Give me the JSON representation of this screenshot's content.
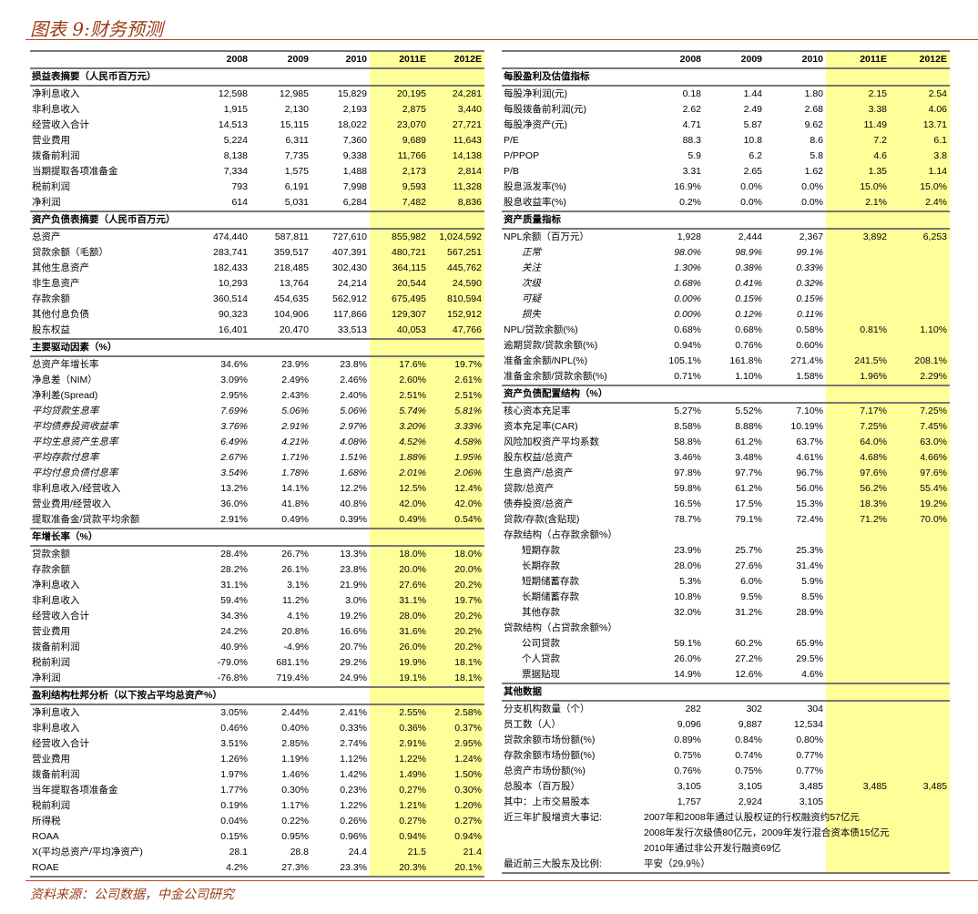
{
  "title": "图表 9:财务预测",
  "source": "资料来源：公司数据，中金公司研究",
  "colors": {
    "highlight": "#ffff99",
    "title": "#9a3b17",
    "rule": "#b5461f"
  },
  "years": [
    "2008",
    "2009",
    "2010",
    "2011E",
    "2012E"
  ],
  "left": [
    {
      "title": "损益表摘要（人民币百万元）",
      "rows": [
        {
          "label": "净利息收入",
          "values": [
            "12,598",
            "12,985",
            "15,829",
            "20,195",
            "24,281"
          ]
        },
        {
          "label": "非利息收入",
          "values": [
            "1,915",
            "2,130",
            "2,193",
            "2,875",
            "3,440"
          ]
        },
        {
          "label": "经营收入合计",
          "values": [
            "14,513",
            "15,115",
            "18,022",
            "23,070",
            "27,721"
          ]
        },
        {
          "label": "营业费用",
          "values": [
            "5,224",
            "6,311",
            "7,360",
            "9,689",
            "11,643"
          ]
        },
        {
          "label": "拨备前利润",
          "values": [
            "8,138",
            "7,735",
            "9,338",
            "11,766",
            "14,138"
          ]
        },
        {
          "label": "当期提取各项准备金",
          "values": [
            "7,334",
            "1,575",
            "1,488",
            "2,173",
            "2,814"
          ]
        },
        {
          "label": "税前利润",
          "values": [
            "793",
            "6,191",
            "7,998",
            "9,593",
            "11,328"
          ]
        },
        {
          "label": "净利润",
          "values": [
            "614",
            "5,031",
            "6,284",
            "7,482",
            "8,836"
          ]
        }
      ]
    },
    {
      "title": "资产负债表摘要（人民币百万元）",
      "rows": [
        {
          "label": "总资产",
          "values": [
            "474,440",
            "587,811",
            "727,610",
            "855,982",
            "1,024,592"
          ]
        },
        {
          "label": "贷款余额（毛额）",
          "values": [
            "283,741",
            "359,517",
            "407,391",
            "480,721",
            "567,251"
          ]
        },
        {
          "label": "其他生息资产",
          "values": [
            "182,433",
            "218,485",
            "302,430",
            "364,115",
            "445,762"
          ]
        },
        {
          "label": "非生息资产",
          "values": [
            "10,293",
            "13,764",
            "24,214",
            "20,544",
            "24,590"
          ]
        },
        {
          "label": "存款余额",
          "values": [
            "360,514",
            "454,635",
            "562,912",
            "675,495",
            "810,594"
          ]
        },
        {
          "label": "其他付息负债",
          "values": [
            "90,323",
            "104,906",
            "117,866",
            "129,307",
            "152,912"
          ]
        },
        {
          "label": "股东权益",
          "values": [
            "16,401",
            "20,470",
            "33,513",
            "40,053",
            "47,766"
          ]
        }
      ]
    },
    {
      "title": "主要驱动因素（%）",
      "rows": [
        {
          "label": "总资产年增长率",
          "values": [
            "34.6%",
            "23.9%",
            "23.8%",
            "17.6%",
            "19.7%"
          ]
        },
        {
          "label": "净息差（NIM）",
          "values": [
            "3.09%",
            "2.49%",
            "2.46%",
            "2.60%",
            "2.61%"
          ]
        },
        {
          "label": "净利差(Spread)",
          "values": [
            "2.95%",
            "2.43%",
            "2.40%",
            "2.51%",
            "2.51%"
          ]
        },
        {
          "label": "平均贷款生息率",
          "style": "it",
          "values": [
            "7.69%",
            "5.06%",
            "5.06%",
            "5.74%",
            "5.81%"
          ]
        },
        {
          "label": "平均债券投资收益率",
          "style": "it",
          "values": [
            "3.76%",
            "2.91%",
            "2.97%",
            "3.20%",
            "3.33%"
          ]
        },
        {
          "label": "平均生息资产生息率",
          "style": "it",
          "values": [
            "6.49%",
            "4.21%",
            "4.08%",
            "4.52%",
            "4.58%"
          ]
        },
        {
          "label": "平均存款付息率",
          "style": "it",
          "values": [
            "2.67%",
            "1.71%",
            "1.51%",
            "1.88%",
            "1.95%"
          ]
        },
        {
          "label": "平均付息负债付息率",
          "style": "it",
          "values": [
            "3.54%",
            "1.78%",
            "1.68%",
            "2.01%",
            "2.06%"
          ]
        },
        {
          "label": "非利息收入/经营收入",
          "values": [
            "13.2%",
            "14.1%",
            "12.2%",
            "12.5%",
            "12.4%"
          ]
        },
        {
          "label": "营业费用/经营收入",
          "values": [
            "36.0%",
            "41.8%",
            "40.8%",
            "42.0%",
            "42.0%"
          ]
        },
        {
          "label": "提取准备金/贷款平均余额",
          "values": [
            "2.91%",
            "0.49%",
            "0.39%",
            "0.49%",
            "0.54%"
          ]
        }
      ]
    },
    {
      "title": "年增长率（%）",
      "rows": [
        {
          "label": "贷款余额",
          "values": [
            "28.4%",
            "26.7%",
            "13.3%",
            "18.0%",
            "18.0%"
          ]
        },
        {
          "label": "存款余额",
          "values": [
            "28.2%",
            "26.1%",
            "23.8%",
            "20.0%",
            "20.0%"
          ]
        },
        {
          "label": "净利息收入",
          "values": [
            "31.1%",
            "3.1%",
            "21.9%",
            "27.6%",
            "20.2%"
          ]
        },
        {
          "label": "非利息收入",
          "values": [
            "59.4%",
            "11.2%",
            "3.0%",
            "31.1%",
            "19.7%"
          ]
        },
        {
          "label": "经营收入合计",
          "values": [
            "34.3%",
            "4.1%",
            "19.2%",
            "28.0%",
            "20.2%"
          ]
        },
        {
          "label": "营业费用",
          "values": [
            "24.2%",
            "20.8%",
            "16.6%",
            "31.6%",
            "20.2%"
          ]
        },
        {
          "label": "拨备前利润",
          "values": [
            "40.9%",
            "-4.9%",
            "20.7%",
            "26.0%",
            "20.2%"
          ]
        },
        {
          "label": "税前利润",
          "values": [
            "-79.0%",
            "681.1%",
            "29.2%",
            "19.9%",
            "18.1%"
          ]
        },
        {
          "label": "净利润",
          "values": [
            "-76.8%",
            "719.4%",
            "24.9%",
            "19.1%",
            "18.1%"
          ]
        }
      ]
    },
    {
      "title": "盈利结构杜邦分析（以下按占平均总资产%）",
      "rows": [
        {
          "label": "净利息收入",
          "values": [
            "3.05%",
            "2.44%",
            "2.41%",
            "2.55%",
            "2.58%"
          ]
        },
        {
          "label": "非利息收入",
          "values": [
            "0.46%",
            "0.40%",
            "0.33%",
            "0.36%",
            "0.37%"
          ]
        },
        {
          "label": "经营收入合计",
          "values": [
            "3.51%",
            "2.85%",
            "2.74%",
            "2.91%",
            "2.95%"
          ]
        },
        {
          "label": "营业费用",
          "values": [
            "1.26%",
            "1.19%",
            "1.12%",
            "1.22%",
            "1.24%"
          ]
        },
        {
          "label": "拨备前利润",
          "values": [
            "1.97%",
            "1.46%",
            "1.42%",
            "1.49%",
            "1.50%"
          ]
        },
        {
          "label": "当年提取各项准备金",
          "values": [
            "1.77%",
            "0.30%",
            "0.23%",
            "0.27%",
            "0.30%"
          ]
        },
        {
          "label": "税前利润",
          "values": [
            "0.19%",
            "1.17%",
            "1.22%",
            "1.21%",
            "1.20%"
          ]
        },
        {
          "label": "所得税",
          "values": [
            "0.04%",
            "0.22%",
            "0.26%",
            "0.27%",
            "0.27%"
          ]
        },
        {
          "label": "ROAA",
          "values": [
            "0.15%",
            "0.95%",
            "0.96%",
            "0.94%",
            "0.94%"
          ]
        },
        {
          "label": "X(平均总资产/平均净资产)",
          "values": [
            "28.1",
            "28.8",
            "24.4",
            "21.5",
            "21.4"
          ]
        },
        {
          "label": "ROAE",
          "values": [
            "4.2%",
            "27.3%",
            "23.3%",
            "20.3%",
            "20.1%"
          ]
        }
      ]
    }
  ],
  "right": [
    {
      "title": "每股盈利及估值指标",
      "rows": [
        {
          "label": "每股净利润(元)",
          "values": [
            "0.18",
            "1.44",
            "1.80",
            "2.15",
            "2.54"
          ]
        },
        {
          "label": "每股拨备前利润(元)",
          "values": [
            "2.62",
            "2.49",
            "2.68",
            "3.38",
            "4.06"
          ]
        },
        {
          "label": "每股净资产(元)",
          "values": [
            "4.71",
            "5.87",
            "9.62",
            "11.49",
            "13.71"
          ]
        },
        {
          "label": "P/E",
          "values": [
            "88.3",
            "10.8",
            "8.6",
            "7.2",
            "6.1"
          ]
        },
        {
          "label": "P/PPOP",
          "values": [
            "5.9",
            "6.2",
            "5.8",
            "4.6",
            "3.8"
          ]
        },
        {
          "label": "P/B",
          "values": [
            "3.31",
            "2.65",
            "1.62",
            "1.35",
            "1.14"
          ]
        },
        {
          "label": "股息派发率(%)",
          "values": [
            "16.9%",
            "0.0%",
            "0.0%",
            "15.0%",
            "15.0%"
          ]
        },
        {
          "label": "股息收益率(%)",
          "values": [
            "0.2%",
            "0.0%",
            "0.0%",
            "2.1%",
            "2.4%"
          ]
        }
      ]
    },
    {
      "title": "资产质量指标",
      "rows": [
        {
          "label": "NPL余额（百万元）",
          "values": [
            "1,928",
            "2,444",
            "2,367",
            "3,892",
            "6,253"
          ]
        },
        {
          "label": "正常",
          "style": "it ind",
          "values": [
            "98.0%",
            "98.9%",
            "99.1%",
            "",
            ""
          ]
        },
        {
          "label": "关注",
          "style": "it ind",
          "values": [
            "1.30%",
            "0.38%",
            "0.33%",
            "",
            ""
          ]
        },
        {
          "label": "次级",
          "style": "it ind",
          "values": [
            "0.68%",
            "0.41%",
            "0.32%",
            "",
            ""
          ]
        },
        {
          "label": "可疑",
          "style": "it ind",
          "values": [
            "0.00%",
            "0.15%",
            "0.15%",
            "",
            ""
          ]
        },
        {
          "label": "损失",
          "style": "it ind",
          "values": [
            "0.00%",
            "0.12%",
            "0.11%",
            "",
            ""
          ]
        },
        {
          "label": "NPL/贷款余额(%)",
          "values": [
            "0.68%",
            "0.68%",
            "0.58%",
            "0.81%",
            "1.10%"
          ]
        },
        {
          "label": "逾期贷款/贷款余额(%)",
          "values": [
            "0.94%",
            "0.76%",
            "0.60%",
            "",
            ""
          ]
        },
        {
          "label": "准备金余额/NPL(%)",
          "values": [
            "105.1%",
            "161.8%",
            "271.4%",
            "241.5%",
            "208.1%"
          ]
        },
        {
          "label": "准备金余额/贷款余额(%)",
          "values": [
            "0.71%",
            "1.10%",
            "1.58%",
            "1.96%",
            "2.29%"
          ]
        }
      ]
    },
    {
      "title": "资产负债配置结构（%）",
      "rows": [
        {
          "label": "核心资本充足率",
          "values": [
            "5.27%",
            "5.52%",
            "7.10%",
            "7.17%",
            "7.25%"
          ]
        },
        {
          "label": "资本充足率(CAR)",
          "values": [
            "8.58%",
            "8.88%",
            "10.19%",
            "7.25%",
            "7.45%"
          ]
        },
        {
          "label": "风险加权资产平均系数",
          "values": [
            "58.8%",
            "61.2%",
            "63.7%",
            "64.0%",
            "63.0%"
          ]
        },
        {
          "label": "股东权益/总资产",
          "values": [
            "3.46%",
            "3.48%",
            "4.61%",
            "4.68%",
            "4.66%"
          ]
        },
        {
          "label": "生息资产/总资产",
          "values": [
            "97.8%",
            "97.7%",
            "96.7%",
            "97.6%",
            "97.6%"
          ]
        },
        {
          "label": "贷款/总资产",
          "values": [
            "59.8%",
            "61.2%",
            "56.0%",
            "56.2%",
            "55.4%"
          ]
        },
        {
          "label": "债券投资/总资产",
          "values": [
            "16.5%",
            "17.5%",
            "15.3%",
            "18.3%",
            "19.2%"
          ]
        },
        {
          "label": "贷款/存款(含贴现)",
          "values": [
            "78.7%",
            "79.1%",
            "72.4%",
            "71.2%",
            "70.0%"
          ]
        },
        {
          "label": "存款结构（占存款余额%）",
          "values": [
            "",
            "",
            "",
            "",
            ""
          ]
        },
        {
          "label": "短期存款",
          "style": "ind",
          "values": [
            "23.9%",
            "25.7%",
            "25.3%",
            "",
            ""
          ]
        },
        {
          "label": "长期存款",
          "style": "ind",
          "values": [
            "28.0%",
            "27.6%",
            "31.4%",
            "",
            ""
          ]
        },
        {
          "label": "短期储蓄存款",
          "style": "ind",
          "values": [
            "5.3%",
            "6.0%",
            "5.9%",
            "",
            ""
          ]
        },
        {
          "label": "长期储蓄存款",
          "style": "ind",
          "values": [
            "10.8%",
            "9.5%",
            "8.5%",
            "",
            ""
          ]
        },
        {
          "label": "其他存款",
          "style": "ind",
          "values": [
            "32.0%",
            "31.2%",
            "28.9%",
            "",
            ""
          ]
        },
        {
          "label": "贷款结构（占贷款余额%）",
          "values": [
            "",
            "",
            "",
            "",
            ""
          ]
        },
        {
          "label": "公司贷款",
          "style": "ind",
          "values": [
            "59.1%",
            "60.2%",
            "65.9%",
            "",
            ""
          ]
        },
        {
          "label": "个人贷款",
          "style": "ind",
          "values": [
            "26.0%",
            "27.2%",
            "29.5%",
            "",
            ""
          ]
        },
        {
          "label": "票据贴现",
          "style": "ind",
          "values": [
            "14.9%",
            "12.6%",
            "4.6%",
            "",
            ""
          ]
        }
      ]
    },
    {
      "title": "其他数据",
      "rows": [
        {
          "label": "分支机构数量（个）",
          "values": [
            "282",
            "302",
            "304",
            "",
            ""
          ]
        },
        {
          "label": "员工数（人）",
          "values": [
            "9,096",
            "9,887",
            "12,534",
            "",
            ""
          ]
        },
        {
          "label": "贷款余额市场份额(%)",
          "values": [
            "0.89%",
            "0.84%",
            "0.80%",
            "",
            ""
          ]
        },
        {
          "label": "存款余额市场份额(%)",
          "values": [
            "0.75%",
            "0.74%",
            "0.77%",
            "",
            ""
          ]
        },
        {
          "label": "总资产市场份额(%)",
          "values": [
            "0.76%",
            "0.75%",
            "0.77%",
            "",
            ""
          ]
        },
        {
          "label": "总股本（百万股）",
          "values": [
            "3,105",
            "3,105",
            "3,485",
            "3,485",
            "3,485"
          ]
        },
        {
          "label": "其中：上市交易股本",
          "values": [
            "1,757",
            "2,924",
            "3,105",
            "",
            ""
          ]
        },
        {
          "label": "近三年扩股增资大事记:",
          "note": "2007年和2008年通过认股权证的行权融资约57亿元"
        },
        {
          "label": "",
          "note": "2008年发行次级债80亿元，2009年发行混合资本债15亿元"
        },
        {
          "label": "",
          "note": "2010年通过非公开发行融资69亿"
        },
        {
          "label": "最近前三大股东及比例:",
          "note": "平安（29.9％）"
        }
      ]
    }
  ]
}
